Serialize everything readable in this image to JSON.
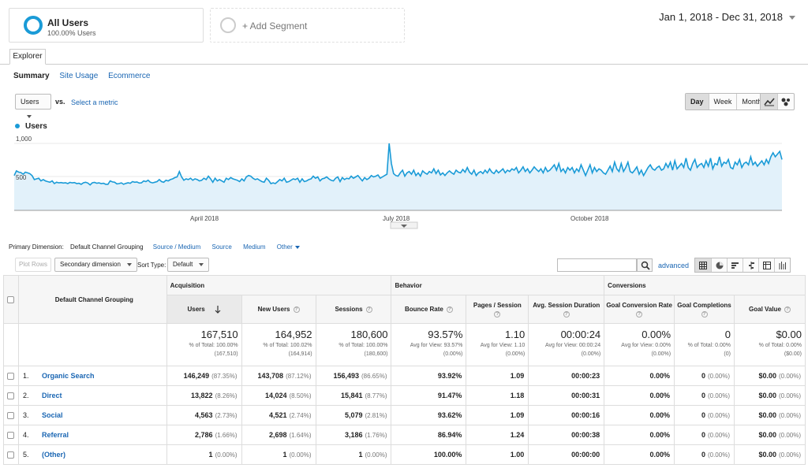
{
  "segments": {
    "active": {
      "title": "All Users",
      "subtitle": "100.00% Users"
    },
    "add_label": "+ Add Segment"
  },
  "date_range": "Jan 1, 2018 - Dec 31, 2018",
  "tabs": {
    "explorer": "Explorer"
  },
  "subtabs": [
    "Summary",
    "Site Usage",
    "Ecommerce"
  ],
  "controls": {
    "metric": "Users",
    "vs": "vs.",
    "select_metric": "Select a metric",
    "period": [
      "Day",
      "Week",
      "Month"
    ],
    "period_active": "Day"
  },
  "chart_data": {
    "type": "area",
    "series": [
      {
        "name": "Users",
        "color": "#1a9bd7"
      }
    ],
    "y_ticks": [
      "1,000",
      "500"
    ],
    "x_ticks": [
      "April 2018",
      "July 2018",
      "October 2018"
    ],
    "ylim": [
      0,
      1000
    ],
    "values": [
      520,
      590,
      570,
      565,
      540,
      570,
      560,
      548,
      520,
      460,
      470,
      480,
      440,
      460,
      440,
      430,
      420,
      440,
      400,
      420,
      410,
      415,
      408,
      412,
      400,
      418,
      410,
      415,
      400,
      405,
      390,
      412,
      420,
      408,
      380,
      412,
      418,
      405,
      410,
      400,
      405,
      390,
      390,
      440,
      425,
      420,
      395,
      400,
      410,
      390,
      402,
      412,
      405,
      430,
      420,
      425,
      408,
      410,
      440,
      430,
      450,
      420,
      410,
      420,
      430,
      460,
      430,
      420,
      450,
      440,
      460,
      470,
      490,
      500,
      580,
      500,
      450,
      470,
      460,
      480,
      450,
      470,
      460,
      440,
      450,
      480,
      460,
      510,
      470,
      420,
      480,
      440,
      460,
      440,
      420,
      480,
      460,
      490,
      470,
      460,
      450,
      430,
      470,
      440,
      500,
      520,
      510,
      480,
      460,
      470,
      450,
      430,
      420,
      480,
      450,
      400,
      410,
      400,
      430,
      460,
      440,
      480,
      420,
      430,
      450,
      470,
      460,
      480,
      420,
      470,
      430,
      440,
      460,
      470,
      510,
      480,
      500,
      440,
      470,
      480,
      500,
      470,
      450,
      440,
      480,
      500,
      430,
      490,
      460,
      480,
      470,
      510,
      480,
      500,
      520,
      480,
      440,
      490,
      460,
      480,
      520,
      500,
      510,
      530,
      480,
      500,
      520,
      540,
      1000,
      700,
      550,
      520,
      510,
      560,
      600,
      510,
      560,
      580,
      540,
      600,
      520,
      560,
      510,
      590,
      560,
      540,
      580,
      560,
      620,
      550,
      600,
      530,
      560,
      520,
      560,
      590,
      560,
      540,
      600,
      570,
      560,
      610,
      570,
      640,
      570,
      540,
      600,
      520,
      560,
      580,
      550,
      600,
      560,
      620,
      570,
      550,
      600,
      560,
      590,
      620,
      560,
      600,
      580,
      620,
      600,
      640,
      560,
      600,
      650,
      580,
      620,
      560,
      600,
      650,
      610,
      580,
      620,
      560,
      640,
      580,
      600,
      640,
      680,
      600,
      700,
      580,
      620,
      560,
      640,
      600,
      640,
      560,
      620,
      580,
      680,
      600,
      520,
      600,
      680,
      560,
      640,
      580,
      620,
      600,
      560,
      540,
      600,
      660,
      580,
      720,
      620,
      580,
      700,
      580,
      640,
      720,
      580,
      560,
      600,
      650,
      540,
      600,
      520,
      580,
      640,
      680,
      620,
      600,
      640,
      660,
      600,
      620,
      700,
      640,
      720,
      600,
      740,
      620,
      660,
      700,
      640,
      780,
      640,
      600,
      700,
      760,
      640,
      680,
      700,
      640,
      740,
      660,
      780,
      620,
      700,
      680,
      800,
      660,
      720,
      700,
      760,
      640,
      620,
      720,
      680,
      760,
      640,
      700,
      720,
      680,
      800,
      680,
      720,
      660,
      700,
      740,
      680,
      760,
      700,
      800,
      860,
      800,
      840,
      880,
      760
    ]
  },
  "primary_dimension": {
    "label": "Primary Dimension:",
    "current": "Default Channel Grouping",
    "options": [
      "Source / Medium",
      "Source",
      "Medium"
    ],
    "other": "Other"
  },
  "table_controls": {
    "plot_rows": "Plot Rows",
    "secondary": "Secondary dimension",
    "sort_label": "Sort Type:",
    "sort_value": "Default",
    "advanced": "advanced"
  },
  "table": {
    "dimension_header": "Default Channel Grouping",
    "groups": [
      "Acquisition",
      "Behavior",
      "Conversions"
    ],
    "columns": [
      "Users",
      "New Users",
      "Sessions",
      "Bounce Rate",
      "Pages / Session",
      "Avg. Session Duration",
      "Goal Conversion Rate",
      "Goal Completions",
      "Goal Value"
    ],
    "totals": [
      {
        "value": "167,510",
        "l1": "% of Total: 100.00%",
        "l2": "(167,510)"
      },
      {
        "value": "164,952",
        "l1": "% of Total: 100.02%",
        "l2": "(164,914)"
      },
      {
        "value": "180,600",
        "l1": "% of Total: 100.00%",
        "l2": "(180,600)"
      },
      {
        "value": "93.57%",
        "l1": "Avg for View: 93.57%",
        "l2": "(0.00%)"
      },
      {
        "value": "1.10",
        "l1": "Avg for View: 1.10",
        "l2": "(0.00%)"
      },
      {
        "value": "00:00:24",
        "l1": "Avg for View: 00:00:24",
        "l2": "(0.00%)"
      },
      {
        "value": "0.00%",
        "l1": "Avg for View: 0.00%",
        "l2": "(0.00%)"
      },
      {
        "value": "0",
        "l1": "% of Total: 0.00%",
        "l2": "(0)"
      },
      {
        "value": "$0.00",
        "l1": "% of Total: 0.00%",
        "l2": "($0.00)"
      }
    ],
    "rows": [
      {
        "idx": "1.",
        "name": "Organic Search",
        "users": "146,249",
        "users_pct": "(87.35%)",
        "new": "143,708",
        "new_pct": "(87.12%)",
        "sessions": "156,493",
        "sessions_pct": "(86.65%)",
        "bounce": "93.92%",
        "pages": "1.09",
        "dur": "00:00:23",
        "gcr": "0.00%",
        "gc": "0",
        "gc_pct": "(0.00%)",
        "gv": "$0.00",
        "gv_pct": "(0.00%)"
      },
      {
        "idx": "2.",
        "name": "Direct",
        "users": "13,822",
        "users_pct": "(8.26%)",
        "new": "14,024",
        "new_pct": "(8.50%)",
        "sessions": "15,841",
        "sessions_pct": "(8.77%)",
        "bounce": "91.47%",
        "pages": "1.18",
        "dur": "00:00:31",
        "gcr": "0.00%",
        "gc": "0",
        "gc_pct": "(0.00%)",
        "gv": "$0.00",
        "gv_pct": "(0.00%)"
      },
      {
        "idx": "3.",
        "name": "Social",
        "users": "4,563",
        "users_pct": "(2.73%)",
        "new": "4,521",
        "new_pct": "(2.74%)",
        "sessions": "5,079",
        "sessions_pct": "(2.81%)",
        "bounce": "93.62%",
        "pages": "1.09",
        "dur": "00:00:16",
        "gcr": "0.00%",
        "gc": "0",
        "gc_pct": "(0.00%)",
        "gv": "$0.00",
        "gv_pct": "(0.00%)"
      },
      {
        "idx": "4.",
        "name": "Referral",
        "users": "2,786",
        "users_pct": "(1.66%)",
        "new": "2,698",
        "new_pct": "(1.64%)",
        "sessions": "3,186",
        "sessions_pct": "(1.76%)",
        "bounce": "86.94%",
        "pages": "1.24",
        "dur": "00:00:38",
        "gcr": "0.00%",
        "gc": "0",
        "gc_pct": "(0.00%)",
        "gv": "$0.00",
        "gv_pct": "(0.00%)"
      },
      {
        "idx": "5.",
        "name": "(Other)",
        "users": "1",
        "users_pct": "(0.00%)",
        "new": "1",
        "new_pct": "(0.00%)",
        "sessions": "1",
        "sessions_pct": "(0.00%)",
        "bounce": "100.00%",
        "pages": "1.00",
        "dur": "00:00:00",
        "gcr": "0.00%",
        "gc": "0",
        "gc_pct": "(0.00%)",
        "gv": "$0.00",
        "gv_pct": "(0.00%)"
      }
    ]
  }
}
